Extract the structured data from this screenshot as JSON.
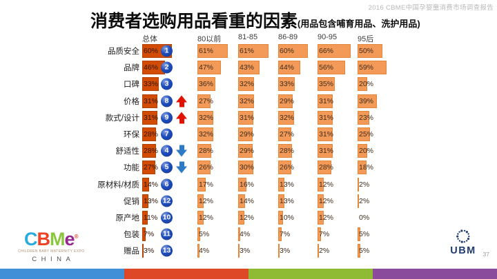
{
  "slide": {
    "watermark": "2016 CBME中国孕婴童消费市场调查报告",
    "title": "消费者选购用品看重的因素",
    "subtitle": "(用品包含哺育用品、洗护用品)",
    "page_number": "37"
  },
  "chart_data": {
    "type": "bar",
    "orientation": "horizontal",
    "title": "消费者选购用品看重的因素",
    "subtitle": "(用品包含哺育用品、洗护用品)",
    "unit": "%",
    "group_labels": [
      "总体",
      "80以前",
      "81-85",
      "86-89",
      "90-95",
      "95后"
    ],
    "rows": [
      {
        "label": "品质安全",
        "rank": 1,
        "trend": null,
        "values": [
          60,
          61,
          61,
          60,
          66,
          50
        ]
      },
      {
        "label": "品牌",
        "rank": 2,
        "trend": null,
        "values": [
          46,
          47,
          43,
          44,
          56,
          59
        ]
      },
      {
        "label": "口碑",
        "rank": 3,
        "trend": null,
        "values": [
          33,
          36,
          32,
          33,
          35,
          20
        ]
      },
      {
        "label": "价格",
        "rank": 8,
        "trend": "up",
        "values": [
          31,
          27,
          32,
          29,
          31,
          39
        ]
      },
      {
        "label": "款式/设计",
        "rank": 9,
        "trend": "up",
        "values": [
          31,
          32,
          31,
          32,
          31,
          23
        ]
      },
      {
        "label": "环保",
        "rank": 7,
        "trend": null,
        "values": [
          28,
          32,
          29,
          27,
          31,
          25
        ]
      },
      {
        "label": "舒适性",
        "rank": 4,
        "trend": "down",
        "values": [
          28,
          28,
          29,
          28,
          31,
          20
        ]
      },
      {
        "label": "功能",
        "rank": 5,
        "trend": "down",
        "values": [
          27,
          26,
          30,
          26,
          28,
          18
        ]
      },
      {
        "label": "原材料/材质",
        "rank": 6,
        "trend": null,
        "values": [
          14,
          17,
          16,
          13,
          12,
          2
        ]
      },
      {
        "label": "促销",
        "rank": 12,
        "trend": null,
        "values": [
          13,
          12,
          14,
          13,
          12,
          2
        ]
      },
      {
        "label": "原产地",
        "rank": 10,
        "trend": null,
        "values": [
          11,
          12,
          12,
          10,
          12,
          0
        ]
      },
      {
        "label": "包装",
        "rank": 11,
        "trend": null,
        "values": [
          7,
          5,
          4,
          7,
          7,
          5
        ]
      },
      {
        "label": "赠品",
        "rank": 13,
        "trend": null,
        "values": [
          3,
          4,
          3,
          3,
          2,
          5
        ]
      }
    ],
    "colors": {
      "bar_total": "#d24c05",
      "bar_generation": "#f49a59",
      "rank_badge": "#1d4cbe",
      "arrow_up": "#e11300",
      "arrow_down": "#2d7ac6"
    },
    "legend_position": "none",
    "grid": false
  },
  "footer": {
    "cbme_logo": {
      "letters": [
        {
          "char": "C",
          "color": "#29abe2"
        },
        {
          "char": "B",
          "color": "#ef4123"
        },
        {
          "char": "M",
          "color": "#8cc63f"
        },
        {
          "char": "e",
          "color": "#93278f"
        }
      ],
      "mark": "®",
      "mark_color": "#ef4123",
      "tagline": "CHILDREN BABY MATERNITY EXPO",
      "country": "CHINA"
    },
    "ubm_logo": {
      "text": "UBM",
      "color": "#1e3a6e"
    },
    "stripe_colors": [
      "#4190d7",
      "#de4826",
      "#8fba33",
      "#8a4b9c"
    ]
  }
}
